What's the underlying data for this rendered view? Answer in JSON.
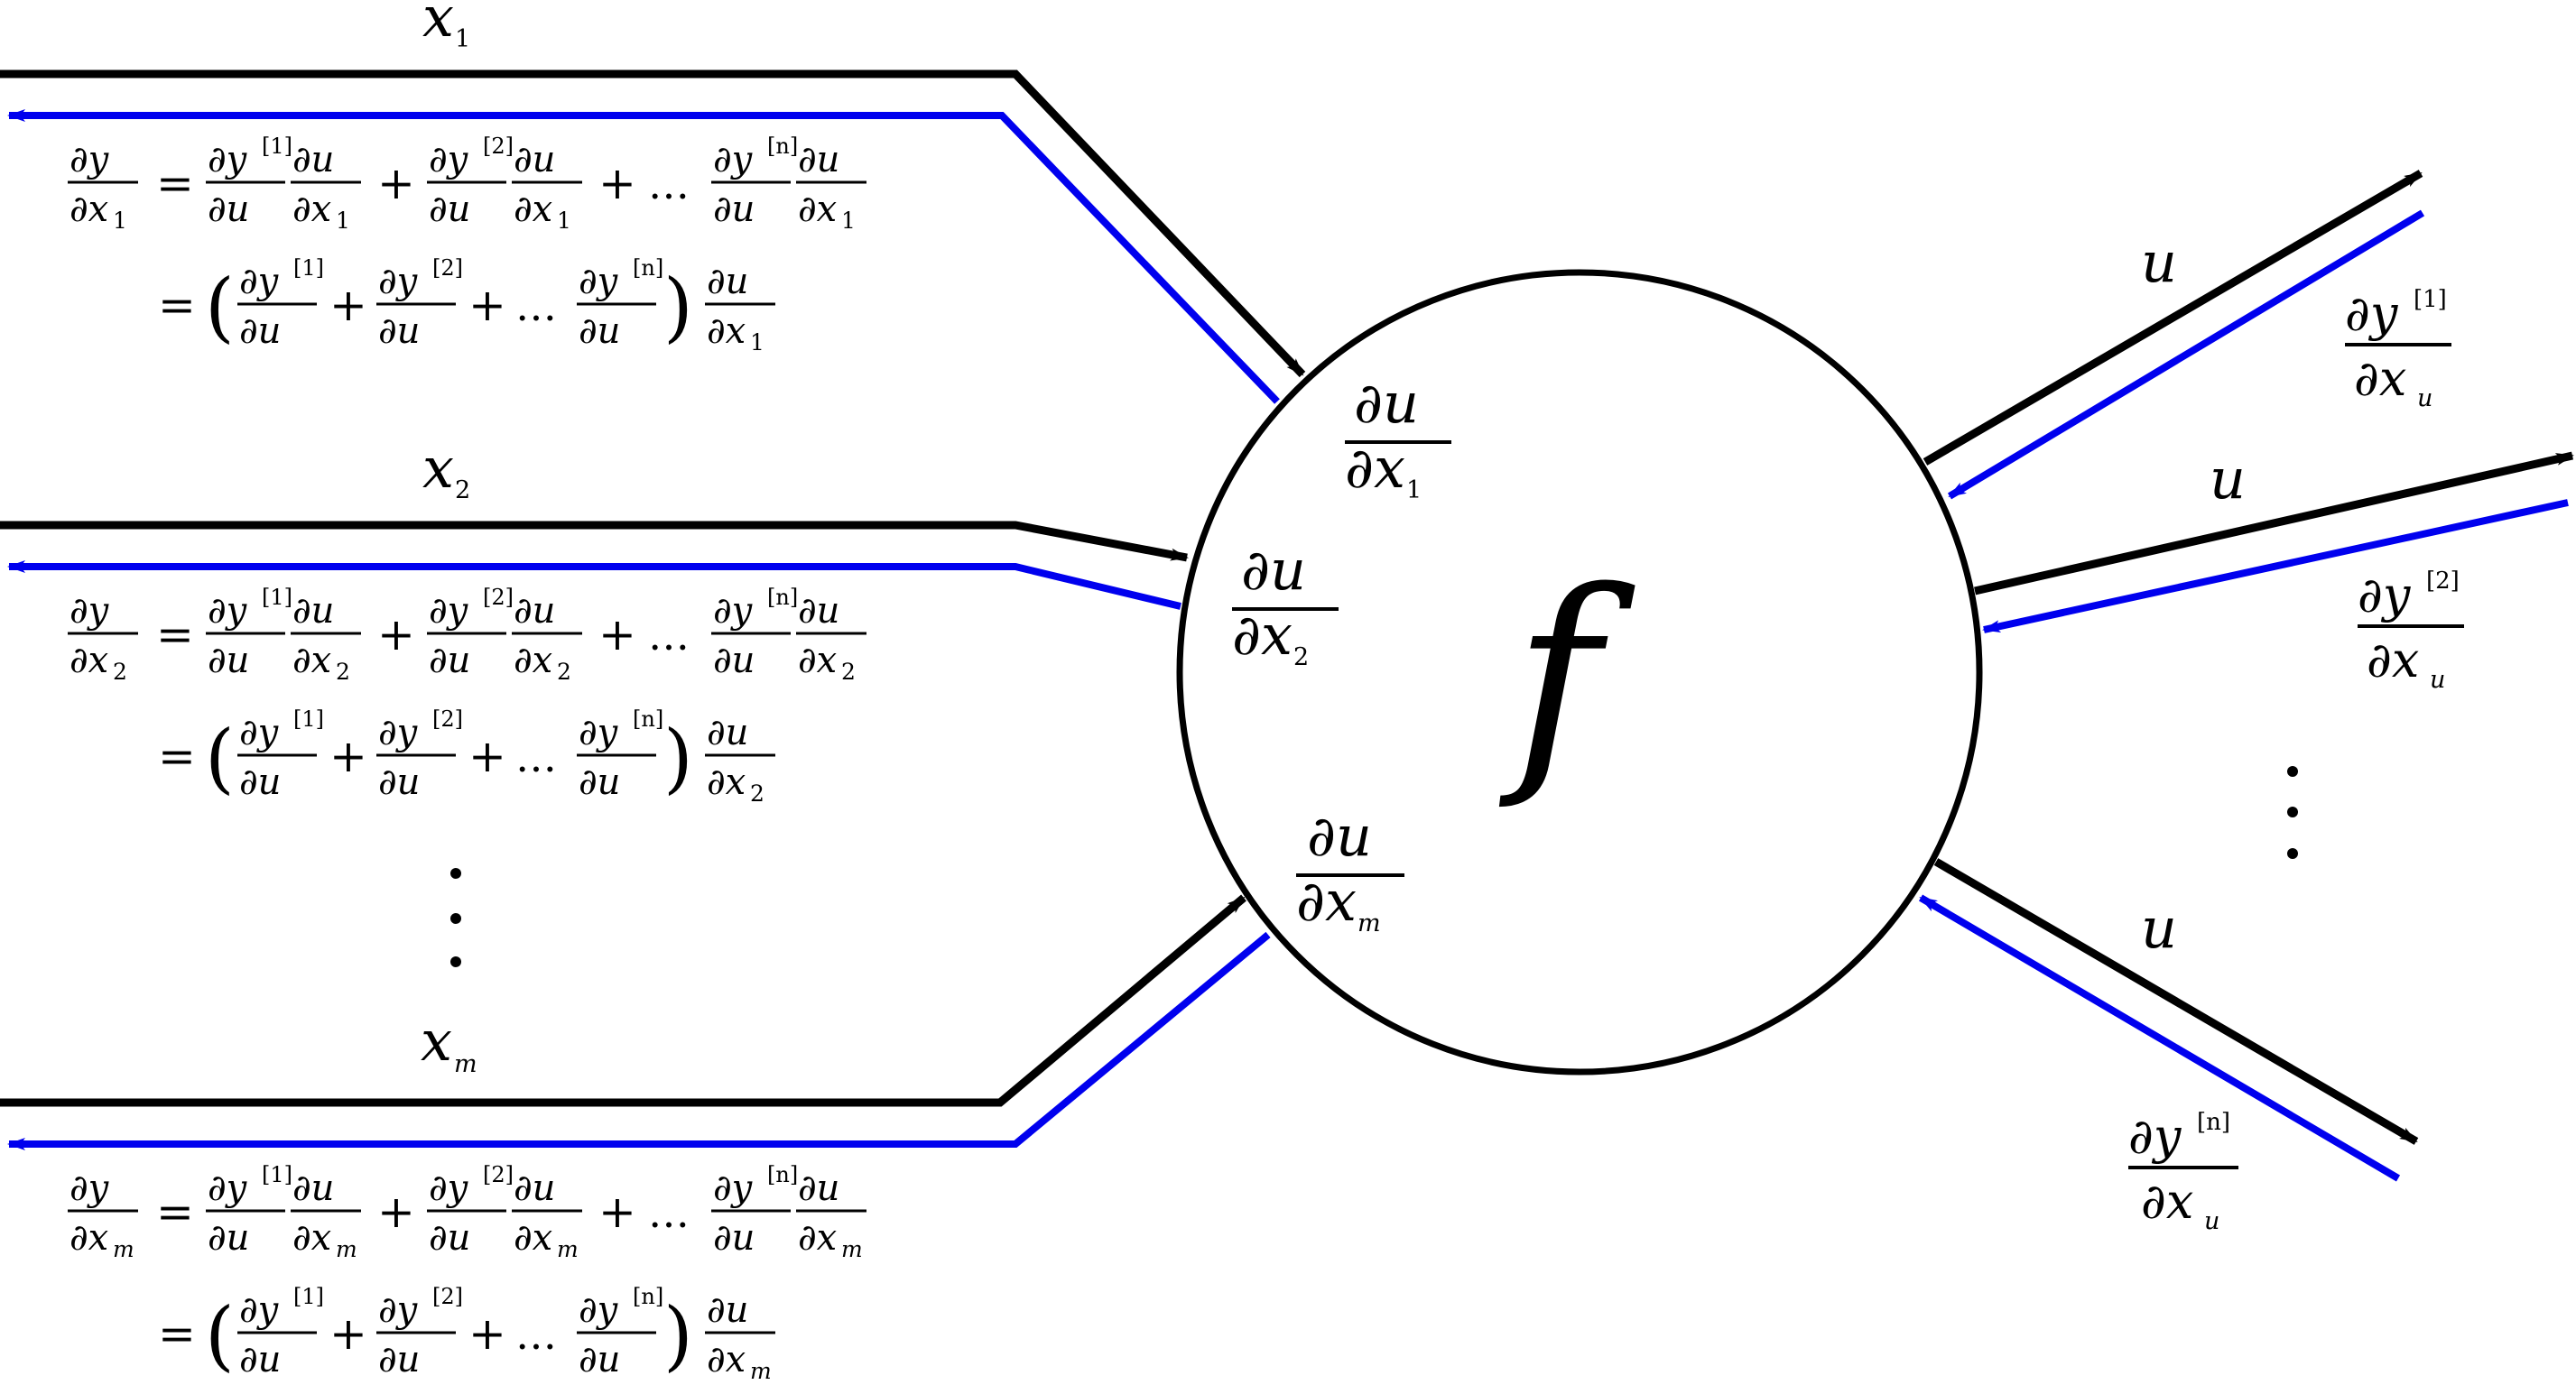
{
  "node": {
    "symbol": "f"
  },
  "inputs": [
    {
      "id": "1",
      "label": "x",
      "subscript": "1"
    },
    {
      "id": "2",
      "label": "x",
      "subscript": "2"
    },
    {
      "id": "m",
      "label": "x",
      "subscript": "m"
    }
  ],
  "output_label": "u",
  "input_local_grad": {
    "num": "∂u",
    "den": "∂x"
  },
  "output_grad": {
    "num": "∂y",
    "den": "∂x",
    "den_sub": "u",
    "sups": [
      "[1]",
      "[2]",
      "[n]"
    ]
  },
  "chain_rule": {
    "lhs_num": "∂y",
    "lhs_den": "∂x",
    "term_num": "∂y",
    "term_den": "∂u",
    "du_num": "∂u",
    "du_den": "∂x",
    "sups": [
      "[1]",
      "[2]",
      "[n]"
    ],
    "equals": "=",
    "plus": "+",
    "dots": "…",
    "lparen": "(",
    "rparen": ")"
  },
  "ellipsis_vertical": "⋮",
  "colors": {
    "forward": "#000000",
    "backward": "#0000ee"
  }
}
